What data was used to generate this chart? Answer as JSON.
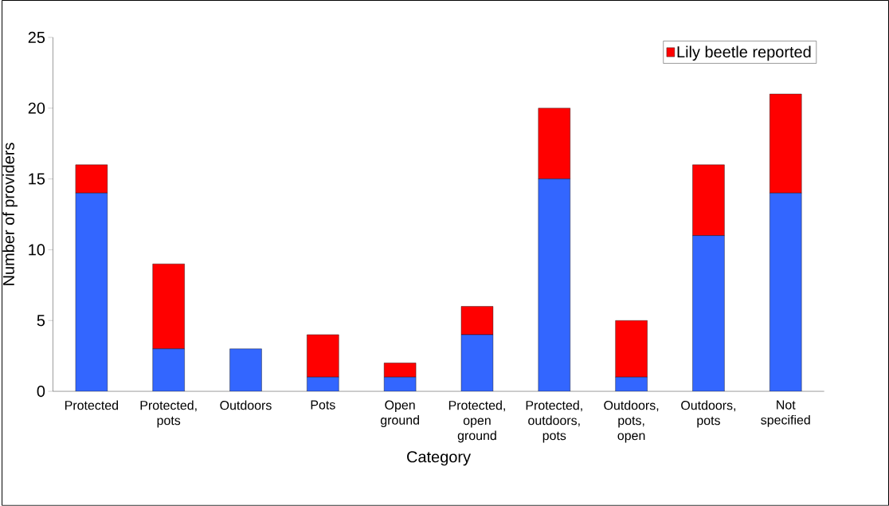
{
  "chart_data": {
    "type": "bar",
    "stacked": true,
    "xlabel": "Category",
    "ylabel": "Number of providers",
    "categories": [
      "Protected",
      "Protected, pots",
      "Outdoors",
      "Pots",
      "Open ground",
      "Protected, open ground",
      "Protected, outdoors, pots",
      "Outdoors, pots, open",
      "Outdoors, pots",
      "Not specified"
    ],
    "series": [
      {
        "color": "#3366ff",
        "values": [
          14,
          3,
          3,
          1,
          1,
          4,
          15,
          1,
          11,
          14
        ]
      },
      {
        "name": "Lily beetle reported",
        "color": "#ff0000",
        "values": [
          2,
          6,
          0,
          3,
          1,
          2,
          5,
          4,
          5,
          7
        ]
      }
    ],
    "ylim": [
      0,
      25
    ],
    "yticks": [
      0,
      5,
      10,
      15,
      20,
      25
    ],
    "legend": "top right"
  }
}
